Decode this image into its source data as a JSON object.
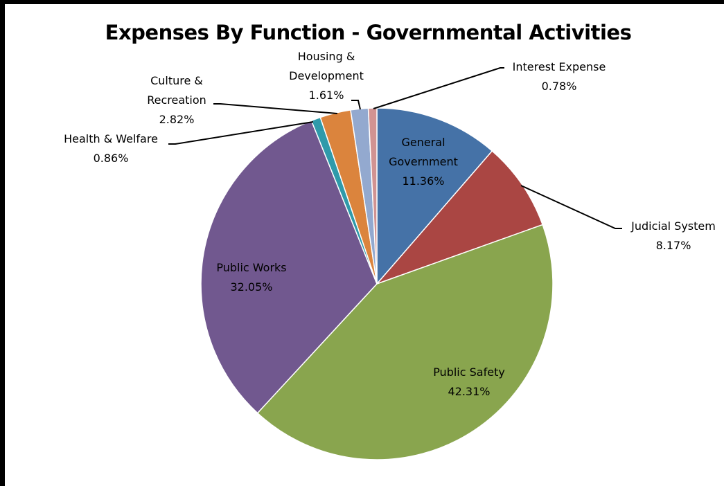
{
  "chart_data": {
    "type": "pie",
    "title": "Expenses By Function - Governmental Activities",
    "start_angle_deg": 0,
    "direction": "clockwise",
    "slices": [
      {
        "name": "General Government",
        "label_lines": [
          "General",
          "Government"
        ],
        "value": 11.36,
        "pct_label": "11.36%",
        "color": "#4572A7"
      },
      {
        "name": "Judicial System",
        "label_lines": [
          "Judicial System"
        ],
        "value": 8.17,
        "pct_label": "8.17%",
        "color": "#AA4643"
      },
      {
        "name": "Public Safety",
        "label_lines": [
          "Public Safety"
        ],
        "value": 42.31,
        "pct_label": "42.31%",
        "color": "#89A54E"
      },
      {
        "name": "Public Works",
        "label_lines": [
          "Public Works"
        ],
        "value": 32.05,
        "pct_label": "32.05%",
        "color": "#71588F"
      },
      {
        "name": "Health & Welfare",
        "label_lines": [
          "Health & Welfare"
        ],
        "value": 0.86,
        "pct_label": "0.86%",
        "color": "#2F9AAA"
      },
      {
        "name": "Culture & Recreation",
        "label_lines": [
          "Culture &",
          "Recreation"
        ],
        "value": 2.82,
        "pct_label": "2.82%",
        "color": "#DB843D"
      },
      {
        "name": "Housing & Development",
        "label_lines": [
          "Housing &",
          "Development"
        ],
        "value": 1.61,
        "pct_label": "1.61%",
        "color": "#93A9CF"
      },
      {
        "name": "Interest Expense",
        "label_lines": [
          "Interest Expense"
        ],
        "value": 0.78,
        "pct_label": "0.78%",
        "color": "#D19392"
      }
    ],
    "legend": "none"
  }
}
